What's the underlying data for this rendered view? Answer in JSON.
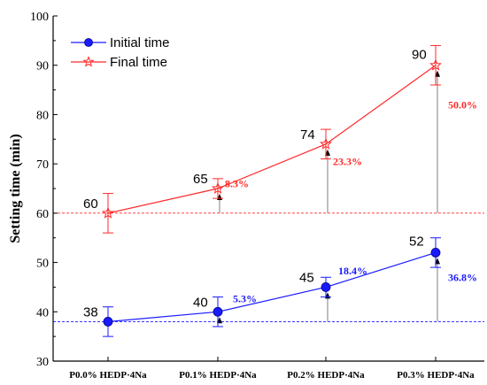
{
  "chart_data": {
    "type": "line",
    "categories": [
      "P0.0% HEDP·4Na",
      "P0.1% HEDP·4Na",
      "P0.2% HEDP·4Na",
      "P0.3% HEDP·4Na"
    ],
    "ylabel": "Setting time (min)",
    "xlabel": "",
    "ylim": [
      30,
      100
    ],
    "yticks": [
      30,
      40,
      50,
      60,
      70,
      80,
      90,
      100
    ],
    "grid": false,
    "legend": "top-left",
    "series": [
      {
        "name": "Initial time",
        "color": "#1a1aff",
        "marker": "sphere",
        "values": [
          38,
          40,
          45,
          52
        ],
        "errors": [
          3,
          3,
          2,
          3
        ],
        "value_labels": [
          "38",
          "40",
          "45",
          "52"
        ],
        "increase_labels": [
          "",
          "5.3%",
          "18.4%",
          "36.8%"
        ],
        "baseline": 38
      },
      {
        "name": "Final time",
        "color": "#ff2a2a",
        "marker": "star",
        "values": [
          60,
          65,
          74,
          90
        ],
        "errors": [
          4,
          2,
          3,
          4
        ],
        "value_labels": [
          "60",
          "65",
          "74",
          "90"
        ],
        "increase_labels": [
          "",
          "8.3%",
          "23.3%",
          "50.0%"
        ],
        "baseline": 60
      }
    ]
  }
}
